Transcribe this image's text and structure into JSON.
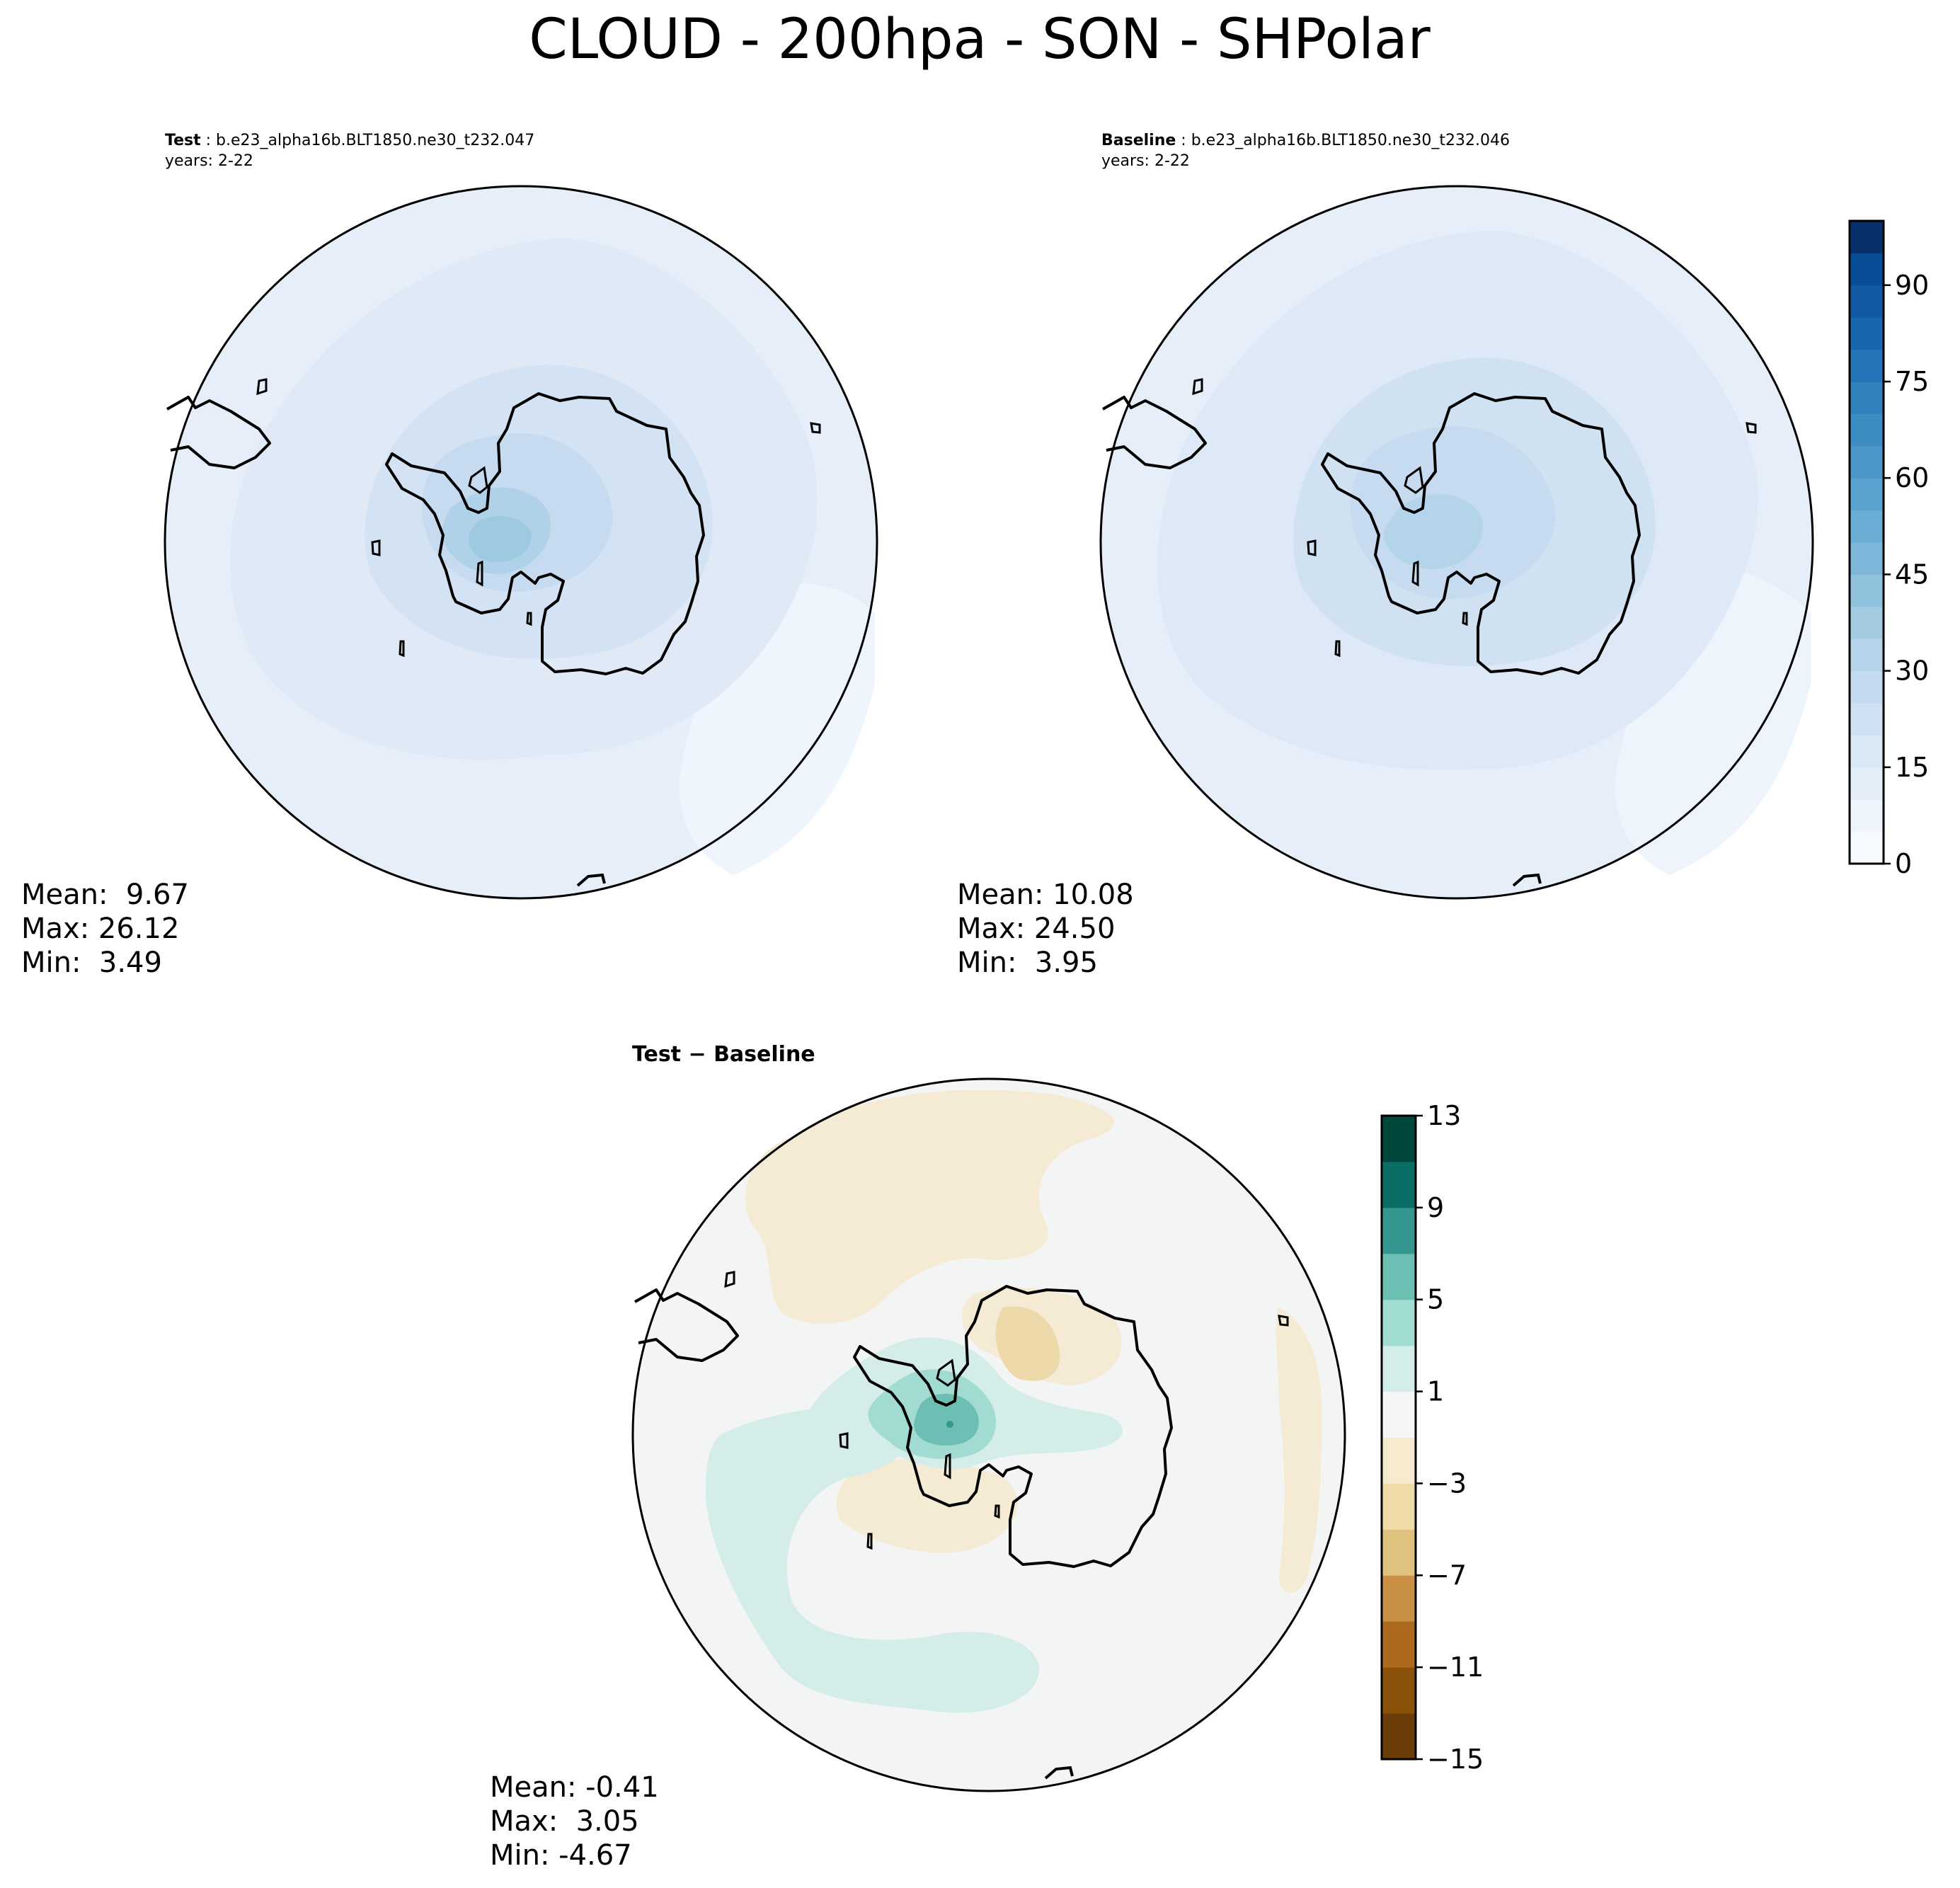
{
  "figure": {
    "title": "CLOUD - 200hpa - SON - SHPolar"
  },
  "panels": {
    "test": {
      "label": "Test",
      "case": "b.e23_alpha16b.BLT1850.ne30_t232.047",
      "years": "years: 2-22",
      "stats": {
        "mean": "Mean:  9.67",
        "max": "Max: 26.12",
        "min": "Min:  3.49"
      }
    },
    "baseline": {
      "label": "Baseline",
      "case": "b.e23_alpha16b.BLT1850.ne30_t232.046",
      "years": "years: 2-22",
      "stats": {
        "mean": "Mean: 10.08",
        "max": "Max: 24.50",
        "min": "Min:  3.95"
      }
    },
    "difference": {
      "label_left": "Test",
      "label_sep": " − ",
      "label_right": "Baseline",
      "stats": {
        "mean": "Mean: -0.41",
        "max": "Max:  3.05",
        "min": "Min: -4.67"
      }
    }
  },
  "colorbars": {
    "main": {
      "min": 0,
      "max": 100,
      "step": 5,
      "ticks": [
        0,
        15,
        30,
        45,
        60,
        75,
        90
      ],
      "tick_labels": [
        "0",
        "15",
        "30",
        "45",
        "60",
        "75",
        "90"
      ],
      "colors": [
        "#f7fbff",
        "#eef5fc",
        "#e3eef9",
        "#d9e8f5",
        "#cfe1f2",
        "#c4daee",
        "#b5d4e9",
        "#a3cce3",
        "#90c2de",
        "#7db8da",
        "#6aaed6",
        "#5aa2cf",
        "#4a98c9",
        "#3d8dc3",
        "#3181bd",
        "#2474b7",
        "#1966ad",
        "#0f5aa3",
        "#084d96",
        "#08306b"
      ]
    },
    "diff": {
      "min": -15,
      "max": 13,
      "step": 2,
      "ticks": [
        -15,
        -11,
        -7,
        -3,
        1,
        5,
        9,
        13
      ],
      "tick_labels": [
        "−15",
        "−11",
        "−7",
        "−3",
        "1",
        "5",
        "9",
        "13"
      ],
      "colors": [
        "#6b3d09",
        "#8b510b",
        "#ad6a1f",
        "#c88f45",
        "#dfc27d",
        "#f0dca8",
        "#f6eacf",
        "#f4f5f4",
        "#d3ede8",
        "#a1dcd2",
        "#6cbfb3",
        "#35978f",
        "#0b6e66",
        "#01473c"
      ]
    }
  },
  "chart_data": [
    {
      "type": "heatmap",
      "projection": "south-polar-stereographic",
      "title": "Test : b.e23_alpha16b.BLT1850.ne30_t232.047",
      "variable": "CLOUD",
      "level": "200hpa",
      "season": "SON",
      "region": "SHPolar",
      "years": "2-22",
      "mean": 9.67,
      "max": 26.12,
      "min": 3.49,
      "levels": [
        0,
        100
      ],
      "level_step": 5,
      "colorbar_ticks": [
        0,
        15,
        30,
        45,
        60,
        75,
        90
      ],
      "colormap": "Blues"
    },
    {
      "type": "heatmap",
      "projection": "south-polar-stereographic",
      "title": "Baseline : b.e23_alpha16b.BLT1850.ne30_t232.046",
      "variable": "CLOUD",
      "level": "200hpa",
      "season": "SON",
      "region": "SHPolar",
      "years": "2-22",
      "mean": 10.08,
      "max": 24.5,
      "min": 3.95,
      "levels": [
        0,
        100
      ],
      "level_step": 5,
      "colorbar_ticks": [
        0,
        15,
        30,
        45,
        60,
        75,
        90
      ],
      "colormap": "Blues"
    },
    {
      "type": "heatmap",
      "projection": "south-polar-stereographic",
      "title": "Test − Baseline",
      "mean": -0.41,
      "max": 3.05,
      "min": -4.67,
      "levels": [
        -15,
        13
      ],
      "level_step": 2,
      "colorbar_ticks": [
        -15,
        -11,
        -7,
        -3,
        1,
        5,
        9,
        13
      ],
      "colormap": "BrBG"
    }
  ]
}
